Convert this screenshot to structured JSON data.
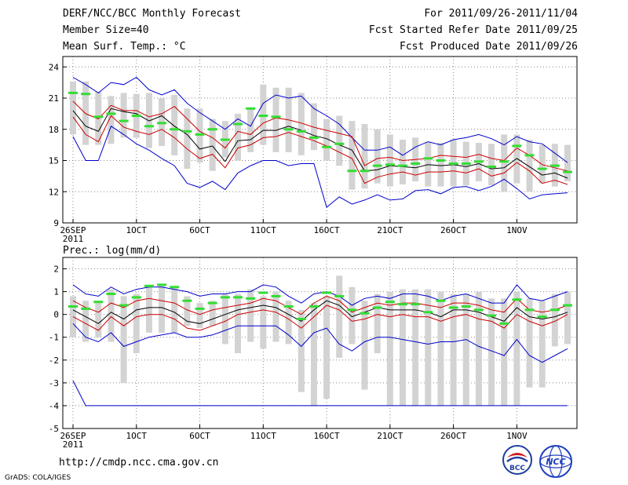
{
  "header": {
    "title": "DERF/NCC/BCC Monthly Forecast",
    "member": "Member Size=40",
    "variable": "Mean Surf. Temp.: °C",
    "period": "For 2011/09/26-2011/11/04",
    "fcst_started": "Fcst Started Refer Date 2011/09/25",
    "fcst_produced": "Fcst Produced Date 2011/09/26"
  },
  "footer": {
    "url": "http://cmdp.ncc.cma.gov.cn",
    "credit": "GrADS: COLA/IGES",
    "logo_left_text": "BCC",
    "logo_right_text": "NCC"
  },
  "colors": {
    "bar": "#d3d3d3",
    "ensemble_mean": "#000000",
    "spread": "#cc0000",
    "extreme": "#0000cc",
    "observed": "#33dd33",
    "grid": "#888888"
  },
  "chart_data": [
    {
      "type": "line",
      "title": "Mean Surf. Temp.: °C",
      "xlabel": "",
      "ylabel": "°C",
      "ylim": [
        9,
        25
      ],
      "yticks": [
        9,
        12,
        15,
        18,
        21,
        24
      ],
      "xticks": [
        {
          "day": 1,
          "label": "26SEP"
        },
        {
          "day": 6,
          "label": "1OCT"
        },
        {
          "day": 11,
          "label": "6OCT"
        },
        {
          "day": 16,
          "label": "11OCT"
        },
        {
          "day": 21,
          "label": "16OCT"
        },
        {
          "day": 26,
          "label": "21OCT"
        },
        {
          "day": 31,
          "label": "26OCT"
        },
        {
          "day": 36,
          "label": "1NOV"
        }
      ],
      "year_label": "2011",
      "grid": true,
      "days": 40,
      "series": [
        {
          "name": "max",
          "values": [
            23.0,
            22.3,
            21.5,
            22.5,
            22.3,
            23.0,
            21.8,
            21.3,
            21.8,
            20.5,
            19.6,
            18.8,
            18.0,
            19.0,
            18.3,
            20.5,
            21.3,
            21.0,
            21.2,
            20.0,
            19.3,
            18.5,
            17.2,
            16.0,
            16.0,
            16.3,
            15.5,
            16.3,
            16.8,
            16.5,
            17.0,
            17.2,
            17.5,
            17.1,
            16.5,
            17.3,
            16.8,
            16.6,
            15.7,
            14.8
          ]
        },
        {
          "name": "upper",
          "values": [
            20.7,
            19.5,
            19.0,
            20.3,
            19.8,
            19.8,
            19.2,
            19.5,
            20.2,
            19.0,
            17.8,
            17.2,
            16.2,
            17.8,
            17.5,
            18.6,
            19.1,
            18.9,
            18.6,
            18.2,
            17.9,
            17.6,
            17.3,
            14.5,
            15.2,
            15.3,
            15.0,
            15.1,
            15.2,
            15.5,
            15.4,
            15.3,
            15.6,
            15.2,
            15.0,
            16.2,
            15.5,
            14.6,
            14.3,
            14.0
          ]
        },
        {
          "name": "mean",
          "values": [
            19.8,
            18.3,
            17.8,
            20.0,
            19.7,
            19.5,
            18.8,
            19.3,
            18.3,
            17.5,
            16.1,
            16.4,
            14.9,
            16.9,
            17.0,
            17.9,
            17.9,
            18.3,
            17.9,
            17.4,
            17.1,
            16.5,
            16.0,
            14.0,
            14.1,
            14.5,
            14.4,
            14.3,
            14.6,
            14.5,
            14.6,
            14.4,
            14.7,
            14.2,
            14.3,
            15.2,
            14.4,
            13.6,
            13.8,
            13.3
          ]
        },
        {
          "name": "lower",
          "values": [
            19.2,
            17.5,
            16.8,
            19.3,
            18.2,
            17.8,
            17.5,
            18.0,
            17.2,
            16.1,
            15.2,
            15.6,
            14.3,
            16.2,
            16.5,
            17.2,
            17.3,
            17.7,
            17.3,
            16.9,
            16.4,
            15.8,
            15.2,
            12.8,
            13.4,
            13.7,
            13.9,
            13.6,
            13.9,
            13.9,
            14.0,
            13.8,
            14.2,
            13.5,
            13.8,
            14.8,
            14.0,
            12.8,
            13.1,
            12.7
          ]
        },
        {
          "name": "min",
          "values": [
            17.3,
            15.0,
            15.0,
            18.3,
            17.5,
            16.6,
            16.0,
            15.2,
            14.5,
            12.8,
            12.4,
            13.0,
            12.2,
            13.8,
            14.5,
            15.0,
            15.0,
            14.5,
            14.7,
            14.7,
            10.5,
            11.5,
            10.8,
            11.2,
            11.7,
            11.2,
            11.3,
            12.1,
            12.2,
            11.8,
            12.4,
            12.5,
            12.1,
            12.5,
            13.2,
            12.3,
            11.3,
            11.7,
            11.8,
            11.9
          ]
        }
      ],
      "bars": [
        {
          "low": 17.5,
          "high": 22.6
        },
        {
          "low": 16.5,
          "high": 22.6
        },
        {
          "low": 16.5,
          "high": 21.6
        },
        {
          "low": 16.6,
          "high": 21.2
        },
        {
          "low": 17.2,
          "high": 21.5
        },
        {
          "low": 17.2,
          "high": 21.4
        },
        {
          "low": 16.2,
          "high": 21.5
        },
        {
          "low": 16.4,
          "high": 21.0
        },
        {
          "low": 15.5,
          "high": 21.3
        },
        {
          "low": 14.2,
          "high": 20.0
        },
        {
          "low": 14.8,
          "high": 20.0
        },
        {
          "low": 14.0,
          "high": 19.0
        },
        {
          "low": 15.3,
          "high": 18.8
        },
        {
          "low": 15.0,
          "high": 19.5
        },
        {
          "low": 15.8,
          "high": 20.0
        },
        {
          "low": 16.5,
          "high": 22.3
        },
        {
          "low": 15.8,
          "high": 22.0
        },
        {
          "low": 15.8,
          "high": 22.0
        },
        {
          "low": 15.5,
          "high": 21.5
        },
        {
          "low": 16.0,
          "high": 20.5
        },
        {
          "low": 15.0,
          "high": 19.0
        },
        {
          "low": 14.5,
          "high": 19.3
        },
        {
          "low": 12.2,
          "high": 18.8
        },
        {
          "low": 12.3,
          "high": 18.5
        },
        {
          "low": 12.8,
          "high": 18.0
        },
        {
          "low": 12.5,
          "high": 17.5
        },
        {
          "low": 12.7,
          "high": 17.0
        },
        {
          "low": 13.0,
          "high": 17.2
        },
        {
          "low": 12.5,
          "high": 16.8
        },
        {
          "low": 12.5,
          "high": 16.7
        },
        {
          "low": 12.5,
          "high": 17.0
        },
        {
          "low": 12.6,
          "high": 16.8
        },
        {
          "low": 13.0,
          "high": 16.7
        },
        {
          "low": 12.6,
          "high": 16.6
        },
        {
          "low": 12.0,
          "high": 17.5
        },
        {
          "low": 12.8,
          "high": 17.5
        },
        {
          "low": 12.0,
          "high": 17.0
        },
        {
          "low": 12.8,
          "high": 16.5
        },
        {
          "low": 12.5,
          "high": 16.6
        },
        {
          "low": 13.0,
          "high": 16.5
        }
      ],
      "observed": [
        21.5,
        21.4,
        19.2,
        19.5,
        18.8,
        19.3,
        18.3,
        18.6,
        18.0,
        17.8,
        17.5,
        18.0,
        17.0,
        18.5,
        20.0,
        19.3,
        19.2,
        18.0,
        17.8,
        17.2,
        16.3,
        16.6,
        14.0,
        14.0,
        14.5,
        14.6,
        14.5,
        14.7,
        15.2,
        15.0,
        14.7,
        14.7,
        14.9,
        14.4,
        14.9,
        16.4,
        15.5,
        14.2,
        14.5,
        13.9
      ]
    },
    {
      "type": "line",
      "title": "Prec.: log(mm/d)",
      "xlabel": "",
      "ylabel": "log(mm/d)",
      "ylim": [
        -5,
        2.5
      ],
      "yticks": [
        -5,
        -4,
        -3,
        -2,
        -1,
        0,
        1,
        2
      ],
      "xticks": [
        {
          "day": 1,
          "label": "26SEP"
        },
        {
          "day": 6,
          "label": "1OCT"
        },
        {
          "day": 11,
          "label": "6OCT"
        },
        {
          "day": 16,
          "label": "11OCT"
        },
        {
          "day": 21,
          "label": "16OCT"
        },
        {
          "day": 26,
          "label": "21OCT"
        },
        {
          "day": 31,
          "label": "26OCT"
        },
        {
          "day": 36,
          "label": "1NOV"
        }
      ],
      "year_label": "2011",
      "grid": true,
      "days": 40,
      "series": [
        {
          "name": "max",
          "values": [
            1.3,
            0.9,
            0.8,
            1.2,
            0.9,
            1.1,
            1.2,
            1.2,
            1.1,
            1.0,
            0.8,
            0.9,
            0.9,
            1.0,
            1.0,
            1.3,
            1.2,
            0.8,
            0.5,
            0.9,
            1.0,
            0.8,
            0.4,
            0.7,
            0.8,
            0.7,
            0.9,
            0.9,
            0.8,
            0.6,
            0.8,
            0.9,
            0.7,
            0.5,
            0.5,
            1.3,
            0.7,
            0.6,
            0.8,
            1.0
          ]
        },
        {
          "name": "upper",
          "values": [
            0.6,
            0.3,
            0.1,
            0.5,
            0.3,
            0.6,
            0.7,
            0.6,
            0.5,
            0.2,
            0.0,
            0.2,
            0.3,
            0.4,
            0.5,
            0.7,
            0.6,
            0.3,
            0.0,
            0.5,
            0.8,
            0.6,
            0.1,
            0.3,
            0.5,
            0.4,
            0.5,
            0.5,
            0.4,
            0.3,
            0.5,
            0.5,
            0.4,
            0.2,
            0.1,
            0.7,
            0.2,
            0.1,
            0.2,
            0.4
          ]
        },
        {
          "name": "mean",
          "values": [
            0.2,
            -0.1,
            -0.4,
            0.1,
            -0.2,
            0.2,
            0.3,
            0.3,
            0.1,
            -0.3,
            -0.4,
            -0.2,
            0.0,
            0.2,
            0.3,
            0.4,
            0.3,
            0.0,
            -0.3,
            0.2,
            0.6,
            0.4,
            -0.1,
            0.1,
            0.3,
            0.2,
            0.2,
            0.2,
            0.1,
            -0.1,
            0.2,
            0.2,
            0.1,
            -0.1,
            -0.3,
            0.3,
            -0.1,
            -0.2,
            -0.1,
            0.1
          ]
        },
        {
          "name": "lower",
          "values": [
            -0.1,
            -0.4,
            -0.7,
            -0.1,
            -0.5,
            -0.1,
            0.0,
            0.0,
            -0.2,
            -0.6,
            -0.7,
            -0.5,
            -0.3,
            0.0,
            0.1,
            0.2,
            0.1,
            -0.2,
            -0.6,
            -0.1,
            0.4,
            0.2,
            -0.3,
            -0.2,
            0.0,
            -0.1,
            0.0,
            -0.1,
            -0.1,
            -0.3,
            -0.1,
            0.0,
            -0.2,
            -0.3,
            -0.6,
            0.0,
            -0.3,
            -0.5,
            -0.3,
            0.0
          ]
        },
        {
          "name": "min",
          "values": [
            -0.4,
            -1.0,
            -1.2,
            -0.8,
            -1.4,
            -1.2,
            -1.0,
            -0.9,
            -0.8,
            -1.0,
            -1.0,
            -0.9,
            -0.7,
            -0.5,
            -0.5,
            -0.5,
            -0.5,
            -0.9,
            -1.4,
            -0.8,
            -0.6,
            -1.3,
            -1.6,
            -1.2,
            -1.0,
            -1.0,
            -1.1,
            -1.2,
            -1.3,
            -1.2,
            -1.2,
            -1.1,
            -1.4,
            -1.6,
            -1.8,
            -1.1,
            -1.8,
            -2.1,
            -1.8,
            -1.5
          ]
        },
        {
          "name": "min_extreme",
          "values": [
            -2.9,
            -4.0,
            -4.0,
            -4.0,
            -4.0,
            -4.0,
            -4.0,
            -4.0,
            -4.0,
            -4.0,
            -4.0,
            -4.0,
            -4.0,
            -4.0,
            -4.0,
            -4.0,
            -4.0,
            -4.0,
            -4.0,
            -4.0,
            -4.0,
            -4.0,
            -4.0,
            -4.0,
            -4.0,
            -4.0,
            -4.0,
            -4.0,
            -4.0,
            -4.0,
            -4.0,
            -4.0,
            -4.0,
            -4.0,
            -4.0,
            -4.0,
            -4.0,
            -4.0,
            -4.0,
            -4.0
          ]
        }
      ],
      "bars": [
        {
          "low": -1.0,
          "high": 0.8
        },
        {
          "low": -1.2,
          "high": 0.6
        },
        {
          "low": -1.0,
          "high": 0.6
        },
        {
          "low": -1.2,
          "high": 1.1
        },
        {
          "low": -3.0,
          "high": 0.8
        },
        {
          "low": -1.7,
          "high": 0.9
        },
        {
          "low": -0.8,
          "high": 1.2
        },
        {
          "low": -0.8,
          "high": 1.3
        },
        {
          "low": -0.8,
          "high": 1.2
        },
        {
          "low": -0.5,
          "high": 0.8
        },
        {
          "low": -0.6,
          "high": 0.5
        },
        {
          "low": -0.5,
          "high": 0.6
        },
        {
          "low": -1.3,
          "high": 0.9
        },
        {
          "low": -1.7,
          "high": 0.9
        },
        {
          "low": -1.2,
          "high": 1.1
        },
        {
          "low": -1.5,
          "high": 0.8
        },
        {
          "low": -1.2,
          "high": 1.0
        },
        {
          "low": -1.3,
          "high": 0.6
        },
        {
          "low": -3.4,
          "high": 0.2
        },
        {
          "low": -4.0,
          "high": 0.5
        },
        {
          "low": -3.7,
          "high": 0.8
        },
        {
          "low": -1.9,
          "high": 1.7
        },
        {
          "low": -1.3,
          "high": 1.2
        },
        {
          "low": -3.3,
          "high": 0.6
        },
        {
          "low": -1.7,
          "high": 0.9
        },
        {
          "low": -4.0,
          "high": 1.0
        },
        {
          "low": -4.0,
          "high": 1.1
        },
        {
          "low": -4.0,
          "high": 1.1
        },
        {
          "low": -4.0,
          "high": 1.1
        },
        {
          "low": -4.0,
          "high": 1.0
        },
        {
          "low": -4.0,
          "high": 0.9
        },
        {
          "low": -4.0,
          "high": 0.9
        },
        {
          "low": -4.0,
          "high": 1.0
        },
        {
          "low": -4.0,
          "high": 0.7
        },
        {
          "low": -4.0,
          "high": 0.7
        },
        {
          "low": -4.0,
          "high": 1.0
        },
        {
          "low": -3.2,
          "high": 0.7
        },
        {
          "low": -3.2,
          "high": 0.6
        },
        {
          "low": -1.4,
          "high": 0.9
        },
        {
          "low": -1.3,
          "high": 1.0
        }
      ],
      "observed": [
        0.35,
        0.25,
        0.55,
        0.9,
        0.4,
        0.75,
        1.25,
        1.3,
        1.2,
        0.6,
        0.25,
        0.5,
        0.75,
        0.75,
        0.7,
        0.95,
        0.8,
        0.35,
        -0.2,
        0.35,
        0.95,
        0.8,
        0.2,
        0.05,
        0.3,
        0.55,
        0.45,
        0.45,
        0.1,
        0.6,
        0.3,
        0.35,
        0.2,
        -0.05,
        -0.4,
        0.65,
        0.2,
        -0.1,
        0.2,
        0.4
      ]
    }
  ]
}
